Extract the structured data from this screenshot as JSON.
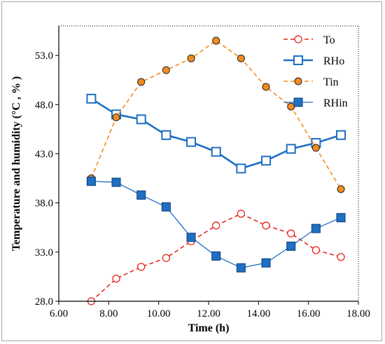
{
  "chart_data": {
    "type": "line",
    "title": "",
    "xlabel": "Time (h)",
    "ylabel": "Temperature and humidity (°C , % )",
    "xlim": [
      6.0,
      18.0
    ],
    "ylim": [
      28.0,
      56.0
    ],
    "x_ticks": [
      "6.00",
      "8.00",
      "10.00",
      "12.00",
      "14.00",
      "16.00",
      "18.00"
    ],
    "y_ticks": [
      "28.0",
      "33.0",
      "38.0",
      "43.0",
      "48.0",
      "53.0"
    ],
    "x": [
      7.3,
      8.3,
      9.3,
      10.3,
      11.3,
      12.3,
      13.3,
      14.3,
      15.3,
      16.3,
      17.3
    ],
    "series": [
      {
        "name": "To",
        "color": "#e8251f",
        "line_style": "dashed",
        "marker": "circle-open",
        "values": [
          28.0,
          30.3,
          31.5,
          32.4,
          34.1,
          35.7,
          36.9,
          35.7,
          34.9,
          33.2,
          32.5
        ]
      },
      {
        "name": "RHo",
        "color": "#1f6fc2",
        "line_style": "solid-thick",
        "marker": "square-open",
        "values": [
          48.6,
          47.0,
          46.5,
          44.9,
          44.2,
          43.2,
          41.5,
          42.3,
          43.5,
          44.1,
          44.9
        ]
      },
      {
        "name": "Tin",
        "color": "#f28c1e",
        "line_style": "dashed",
        "marker": "circle-filled",
        "values": [
          40.5,
          46.7,
          50.3,
          51.5,
          52.7,
          54.5,
          52.7,
          49.8,
          47.8,
          43.6,
          39.4
        ]
      },
      {
        "name": "RHin",
        "color": "#1f6fc2",
        "line_style": "solid-thin",
        "marker": "square-filled",
        "values": [
          40.2,
          40.1,
          38.8,
          37.6,
          34.5,
          32.6,
          31.4,
          31.9,
          33.6,
          35.4,
          36.5
        ]
      }
    ],
    "legend_position": "top-right"
  }
}
